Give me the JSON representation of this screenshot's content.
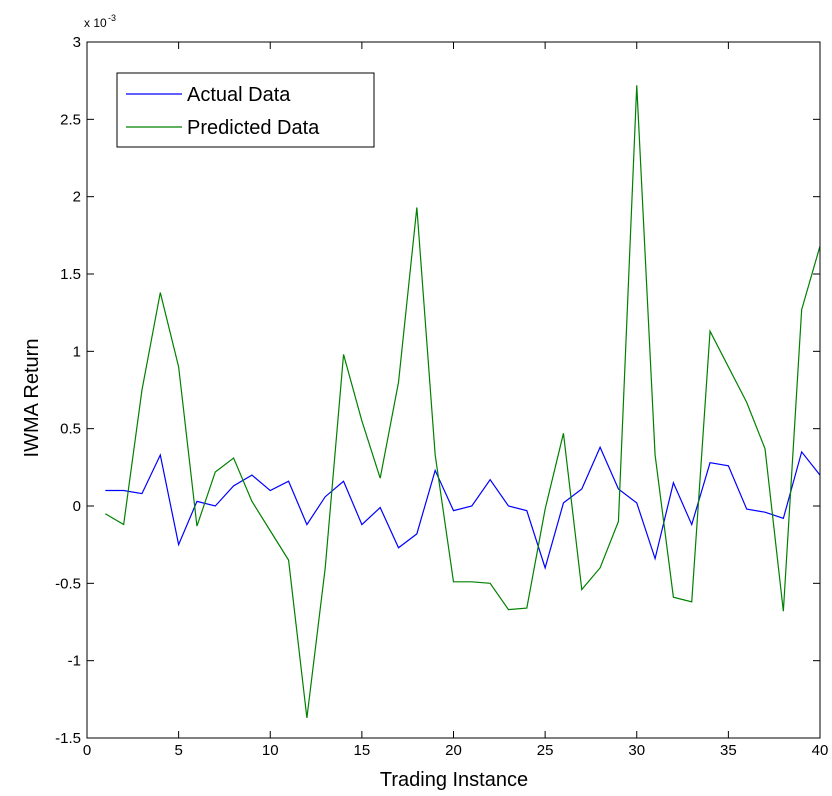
{
  "chart_data": {
    "type": "line",
    "title": "",
    "xlabel": "Trading Instance",
    "ylabel": "IWMA Return",
    "y_multiplier_base": "x 10",
    "y_multiplier_exp": "-3",
    "xlim": [
      0,
      40
    ],
    "ylim": [
      -1.5,
      3
    ],
    "xticks": [
      0,
      5,
      10,
      15,
      20,
      25,
      30,
      35,
      40
    ],
    "yticks": [
      -1.5,
      -1,
      -0.5,
      0,
      0.5,
      1,
      1.5,
      2,
      2.5,
      3
    ],
    "xtick_labels": [
      "0",
      "5",
      "10",
      "15",
      "20",
      "25",
      "30",
      "35",
      "40"
    ],
    "ytick_labels": [
      "-1.5",
      "-1",
      "-0.5",
      "0",
      "0.5",
      "1",
      "1.5",
      "2",
      "2.5",
      "3"
    ],
    "grid": false,
    "legend_position": "top-left",
    "x": [
      1,
      2,
      3,
      4,
      5,
      6,
      7,
      8,
      9,
      10,
      11,
      12,
      13,
      14,
      15,
      16,
      17,
      18,
      19,
      20,
      21,
      22,
      23,
      24,
      25,
      26,
      27,
      28,
      29,
      30,
      31,
      32,
      33,
      34,
      35,
      36,
      37,
      38,
      39,
      40
    ],
    "series": [
      {
        "name": "Actual Data",
        "color": "#0000ff",
        "values": [
          0.1,
          0.1,
          0.08,
          0.33,
          -0.25,
          0.03,
          0.0,
          0.13,
          0.2,
          0.1,
          0.16,
          -0.12,
          0.06,
          0.16,
          -0.12,
          -0.01,
          -0.27,
          -0.18,
          0.23,
          -0.03,
          0.0,
          0.17,
          0.0,
          -0.03,
          -0.4,
          0.02,
          0.11,
          0.38,
          0.11,
          0.02,
          -0.34,
          0.15,
          -0.12,
          0.28,
          0.26,
          -0.02,
          -0.04,
          -0.08,
          0.35,
          0.2
        ]
      },
      {
        "name": "Predicted Data",
        "color": "#008000",
        "values": [
          -0.05,
          -0.12,
          0.75,
          1.38,
          0.9,
          -0.13,
          0.22,
          0.31,
          0.03,
          -0.16,
          -0.35,
          -1.37,
          -0.4,
          0.98,
          0.55,
          0.18,
          0.8,
          1.93,
          0.33,
          -0.49,
          -0.49,
          -0.5,
          -0.67,
          -0.66,
          -0.02,
          0.47,
          -0.54,
          -0.4,
          -0.1,
          2.72,
          0.33,
          -0.59,
          -0.62,
          1.13,
          0.9,
          0.67,
          0.37,
          -0.68,
          1.27,
          1.68
        ]
      }
    ]
  }
}
